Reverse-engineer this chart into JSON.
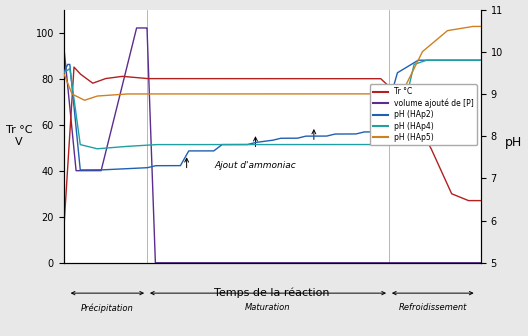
{
  "xlabel": "Temps de la réaction",
  "ylabel_left": "Tr °C\nV",
  "ylabel_right": "pH",
  "ylim_left": [
    0,
    110
  ],
  "ylim_right": [
    5,
    11
  ],
  "bg_color": "#e8e8e8",
  "plot_bg_color": "#ffffff",
  "colors": {
    "Tr": "#b22020",
    "volume": "#5b2d8e",
    "pH_HAp2": "#2060b0",
    "pH_HAp4": "#20a0a0",
    "pH_HAp5": "#d08020"
  },
  "legend_labels": [
    "Tr °C",
    "volume ajouté de [P]",
    "pH (HAp2)",
    "pH (HAp4)",
    "pH (HAp5)"
  ],
  "ammonia_label": "Ajout d'ammoniac",
  "phase_labels": [
    "Précipitation",
    "Maturation",
    "Refroidissement"
  ]
}
